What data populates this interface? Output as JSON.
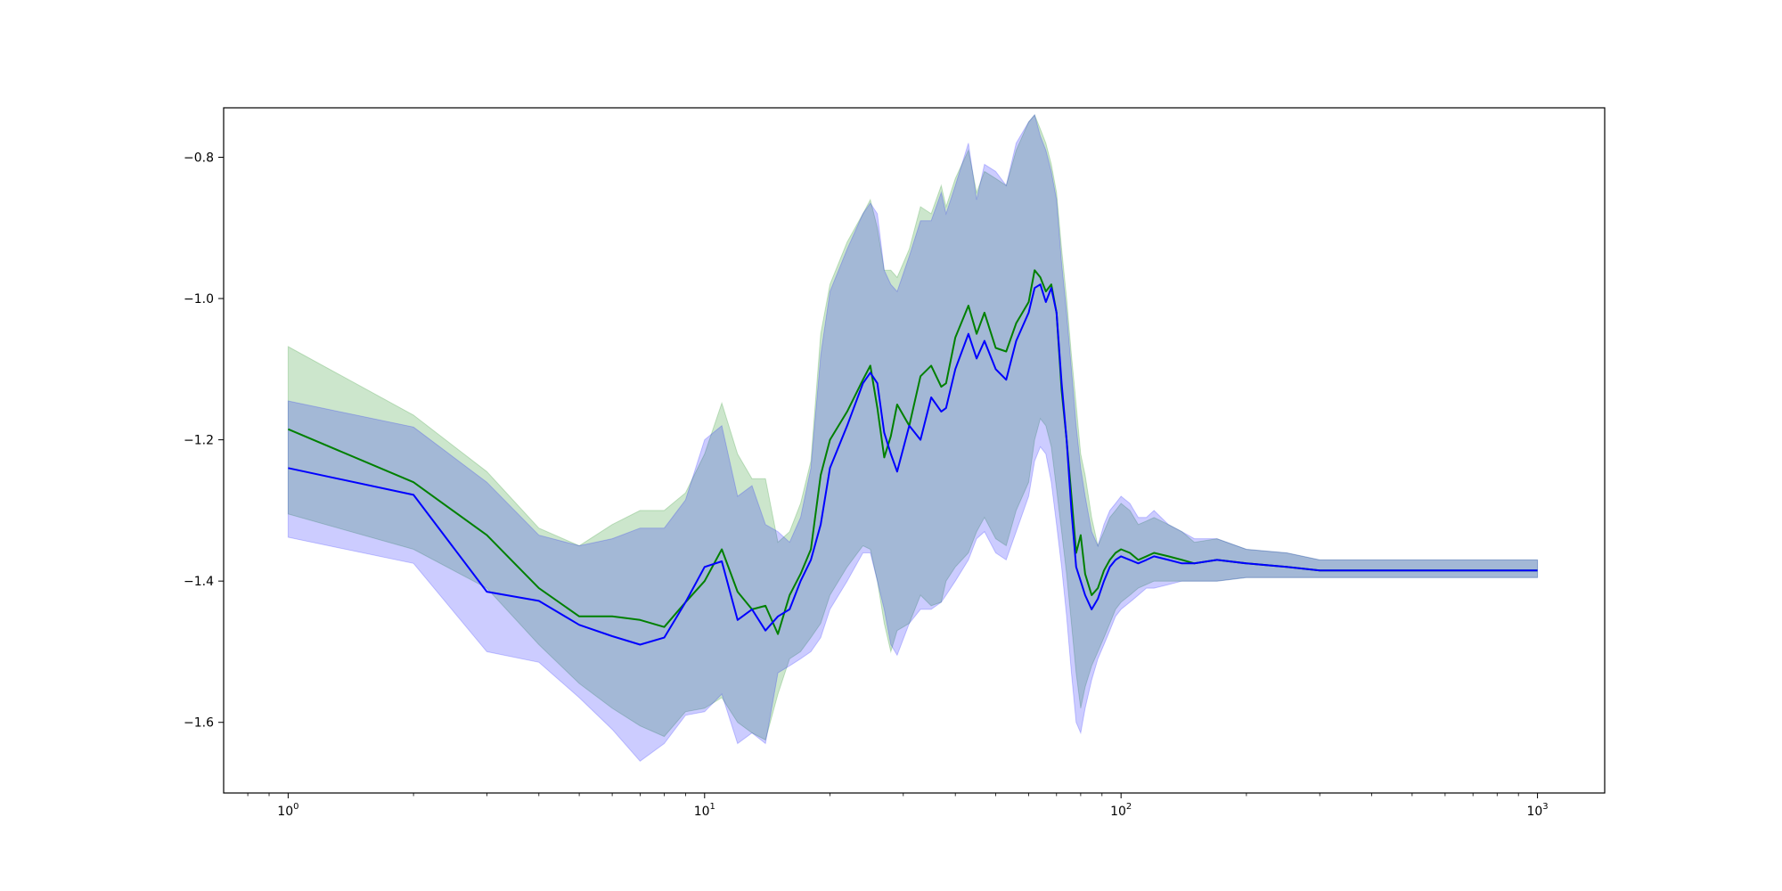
{
  "chart_data": {
    "type": "line",
    "title": "",
    "xlabel": "",
    "ylabel": "",
    "xscale": "log",
    "xlim": [
      0.7,
      1450
    ],
    "ylim": [
      -1.7,
      -0.73
    ],
    "x_ticks": [
      {
        "value": 1,
        "base": "10",
        "exp": "0"
      },
      {
        "value": 10,
        "base": "10",
        "exp": "1"
      },
      {
        "value": 100,
        "base": "10",
        "exp": "2"
      },
      {
        "value": 1000,
        "base": "10",
        "exp": "3"
      }
    ],
    "y_ticks": [
      {
        "value": -0.8,
        "label": "−0.8"
      },
      {
        "value": -1.0,
        "label": "−1.0"
      },
      {
        "value": -1.2,
        "label": "−1.2"
      },
      {
        "value": -1.4,
        "label": "−1.4"
      },
      {
        "value": -1.6,
        "label": "−1.6"
      }
    ],
    "grid": false,
    "legend": "none",
    "series": [
      {
        "color": "#008000",
        "band_color": "#008000",
        "band_opacity": 0.2,
        "x": [
          1,
          2,
          3,
          4,
          5,
          6,
          7,
          8,
          9,
          10,
          11,
          12,
          13,
          14,
          15,
          16,
          17,
          18,
          19,
          20,
          22,
          24,
          25,
          26,
          27,
          28,
          29,
          31,
          33,
          35,
          37,
          38,
          40,
          43,
          45,
          47,
          50,
          53,
          56,
          60,
          62,
          64,
          66,
          68,
          70,
          72,
          74,
          76,
          78,
          80,
          82,
          85,
          88,
          91,
          94,
          97,
          100,
          105,
          110,
          115,
          120,
          130,
          140,
          150,
          170,
          200,
          250,
          300,
          400,
          500,
          600,
          700,
          800,
          1000
        ],
        "values": [
          -1.185,
          -1.26,
          -1.335,
          -1.41,
          -1.45,
          -1.45,
          -1.455,
          -1.465,
          -1.43,
          -1.4,
          -1.355,
          -1.415,
          -1.44,
          -1.435,
          -1.475,
          -1.42,
          -1.39,
          -1.355,
          -1.25,
          -1.2,
          -1.16,
          -1.115,
          -1.095,
          -1.155,
          -1.225,
          -1.195,
          -1.15,
          -1.18,
          -1.11,
          -1.095,
          -1.125,
          -1.12,
          -1.055,
          -1.01,
          -1.05,
          -1.02,
          -1.07,
          -1.075,
          -1.035,
          -1.005,
          -0.96,
          -0.97,
          -0.99,
          -0.98,
          -1.02,
          -1.13,
          -1.2,
          -1.28,
          -1.36,
          -1.335,
          -1.39,
          -1.42,
          -1.41,
          -1.385,
          -1.37,
          -1.36,
          -1.355,
          -1.36,
          -1.37,
          -1.365,
          -1.36,
          -1.365,
          -1.37,
          -1.375,
          -1.37,
          -1.375,
          -1.38,
          -1.385,
          -1.385,
          -1.385,
          -1.385,
          -1.385,
          -1.385,
          -1.385
        ],
        "lower": [
          -1.305,
          -1.355,
          -1.41,
          -1.49,
          -1.545,
          -1.58,
          -1.605,
          -1.62,
          -1.585,
          -1.58,
          -1.565,
          -1.6,
          -1.615,
          -1.625,
          -1.56,
          -1.51,
          -1.5,
          -1.48,
          -1.46,
          -1.42,
          -1.38,
          -1.35,
          -1.355,
          -1.4,
          -1.46,
          -1.5,
          -1.47,
          -1.46,
          -1.42,
          -1.435,
          -1.43,
          -1.4,
          -1.38,
          -1.36,
          -1.33,
          -1.31,
          -1.34,
          -1.35,
          -1.3,
          -1.26,
          -1.2,
          -1.17,
          -1.18,
          -1.21,
          -1.27,
          -1.33,
          -1.39,
          -1.46,
          -1.53,
          -1.58,
          -1.55,
          -1.52,
          -1.5,
          -1.48,
          -1.46,
          -1.44,
          -1.43,
          -1.42,
          -1.41,
          -1.405,
          -1.4,
          -1.4,
          -1.4,
          -1.4,
          -1.4,
          -1.395,
          -1.395,
          -1.395,
          -1.395,
          -1.395,
          -1.395,
          -1.395,
          -1.395,
          -1.395
        ],
        "upper": [
          -1.068,
          -1.165,
          -1.245,
          -1.325,
          -1.35,
          -1.32,
          -1.3,
          -1.3,
          -1.275,
          -1.22,
          -1.148,
          -1.22,
          -1.255,
          -1.255,
          -1.345,
          -1.33,
          -1.29,
          -1.23,
          -1.05,
          -0.98,
          -0.92,
          -0.88,
          -0.86,
          -0.9,
          -0.96,
          -0.96,
          -0.97,
          -0.93,
          -0.87,
          -0.88,
          -0.84,
          -0.87,
          -0.83,
          -0.79,
          -0.85,
          -0.82,
          -0.83,
          -0.84,
          -0.79,
          -0.75,
          -0.74,
          -0.76,
          -0.78,
          -0.81,
          -0.85,
          -0.93,
          -1.0,
          -1.08,
          -1.15,
          -1.22,
          -1.25,
          -1.31,
          -1.35,
          -1.33,
          -1.31,
          -1.3,
          -1.29,
          -1.3,
          -1.32,
          -1.315,
          -1.31,
          -1.32,
          -1.33,
          -1.345,
          -1.34,
          -1.355,
          -1.36,
          -1.37,
          -1.37,
          -1.37,
          -1.37,
          -1.37,
          -1.37,
          -1.37
        ]
      },
      {
        "color": "#0000ff",
        "band_color": "#0000ff",
        "band_opacity": 0.2,
        "x": [
          1,
          2,
          3,
          4,
          5,
          6,
          7,
          8,
          9,
          10,
          11,
          12,
          13,
          14,
          15,
          16,
          17,
          18,
          19,
          20,
          22,
          24,
          25,
          26,
          27,
          28,
          29,
          31,
          33,
          35,
          37,
          38,
          40,
          43,
          45,
          47,
          50,
          53,
          56,
          60,
          62,
          64,
          66,
          68,
          70,
          72,
          74,
          76,
          78,
          80,
          82,
          85,
          88,
          91,
          94,
          97,
          100,
          105,
          110,
          115,
          120,
          130,
          140,
          150,
          170,
          200,
          250,
          300,
          400,
          500,
          600,
          700,
          800,
          1000
        ],
        "values": [
          -1.24,
          -1.278,
          -1.415,
          -1.428,
          -1.462,
          -1.478,
          -1.49,
          -1.48,
          -1.43,
          -1.38,
          -1.372,
          -1.455,
          -1.44,
          -1.47,
          -1.45,
          -1.44,
          -1.4,
          -1.37,
          -1.32,
          -1.24,
          -1.18,
          -1.12,
          -1.105,
          -1.12,
          -1.19,
          -1.22,
          -1.245,
          -1.18,
          -1.2,
          -1.14,
          -1.16,
          -1.155,
          -1.1,
          -1.05,
          -1.085,
          -1.06,
          -1.1,
          -1.115,
          -1.06,
          -1.02,
          -0.985,
          -0.98,
          -1.005,
          -0.985,
          -1.02,
          -1.12,
          -1.2,
          -1.3,
          -1.38,
          -1.4,
          -1.42,
          -1.44,
          -1.425,
          -1.4,
          -1.38,
          -1.37,
          -1.365,
          -1.37,
          -1.375,
          -1.37,
          -1.365,
          -1.37,
          -1.375,
          -1.375,
          -1.37,
          -1.375,
          -1.38,
          -1.385,
          -1.385,
          -1.385,
          -1.385,
          -1.385,
          -1.385,
          -1.385
        ],
        "lower": [
          -1.338,
          -1.375,
          -1.5,
          -1.515,
          -1.565,
          -1.61,
          -1.655,
          -1.63,
          -1.59,
          -1.585,
          -1.56,
          -1.63,
          -1.615,
          -1.63,
          -1.53,
          -1.52,
          -1.51,
          -1.5,
          -1.48,
          -1.44,
          -1.4,
          -1.36,
          -1.36,
          -1.4,
          -1.44,
          -1.49,
          -1.505,
          -1.46,
          -1.44,
          -1.44,
          -1.43,
          -1.42,
          -1.4,
          -1.37,
          -1.34,
          -1.33,
          -1.36,
          -1.37,
          -1.33,
          -1.28,
          -1.23,
          -1.21,
          -1.22,
          -1.26,
          -1.32,
          -1.38,
          -1.45,
          -1.53,
          -1.6,
          -1.615,
          -1.58,
          -1.54,
          -1.51,
          -1.49,
          -1.47,
          -1.45,
          -1.44,
          -1.43,
          -1.42,
          -1.41,
          -1.41,
          -1.405,
          -1.4,
          -1.4,
          -1.4,
          -1.395,
          -1.395,
          -1.395,
          -1.395,
          -1.395,
          -1.395,
          -1.395,
          -1.395,
          -1.395
        ],
        "upper": [
          -1.145,
          -1.182,
          -1.26,
          -1.335,
          -1.35,
          -1.34,
          -1.325,
          -1.325,
          -1.285,
          -1.2,
          -1.18,
          -1.28,
          -1.265,
          -1.32,
          -1.33,
          -1.345,
          -1.31,
          -1.24,
          -1.08,
          -0.99,
          -0.93,
          -0.88,
          -0.865,
          -0.88,
          -0.96,
          -0.98,
          -0.99,
          -0.94,
          -0.89,
          -0.89,
          -0.85,
          -0.88,
          -0.84,
          -0.78,
          -0.86,
          -0.81,
          -0.82,
          -0.84,
          -0.78,
          -0.75,
          -0.74,
          -0.77,
          -0.79,
          -0.82,
          -0.86,
          -0.95,
          -1.02,
          -1.1,
          -1.18,
          -1.24,
          -1.28,
          -1.33,
          -1.35,
          -1.32,
          -1.3,
          -1.29,
          -1.28,
          -1.29,
          -1.31,
          -1.31,
          -1.3,
          -1.32,
          -1.33,
          -1.34,
          -1.34,
          -1.355,
          -1.36,
          -1.37,
          -1.37,
          -1.37,
          -1.37,
          -1.37,
          -1.37,
          -1.37
        ]
      }
    ]
  }
}
